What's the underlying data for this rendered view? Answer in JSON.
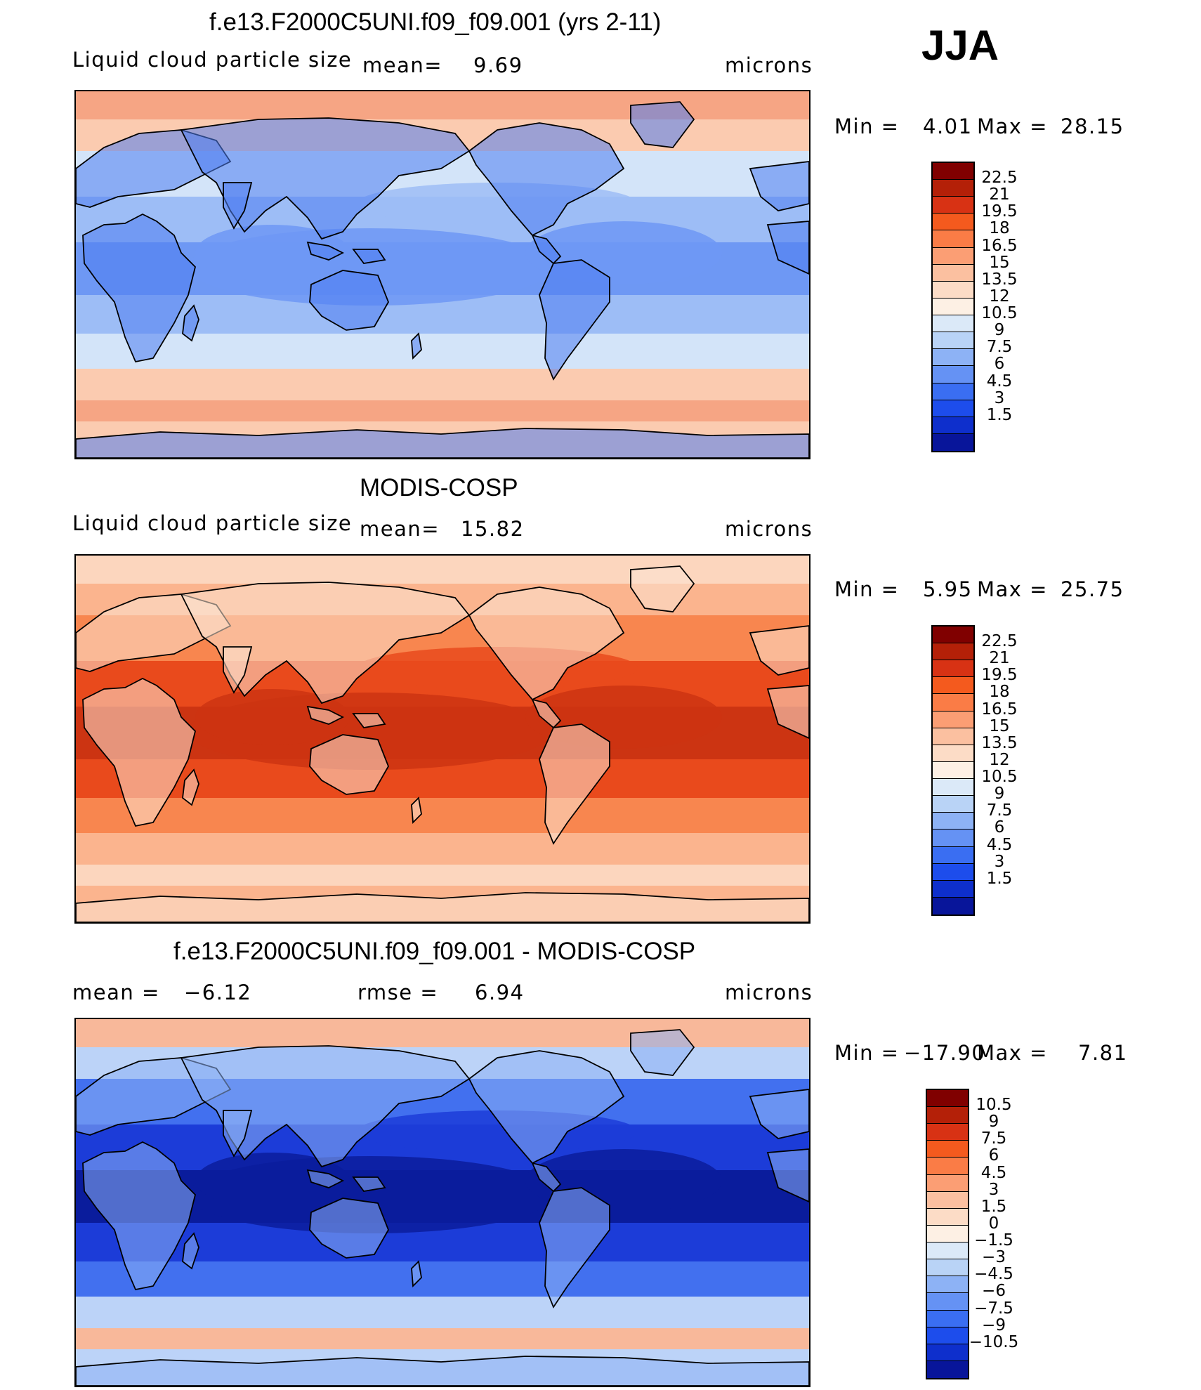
{
  "season": "JJA",
  "units": "microns",
  "panels": [
    {
      "title": "f.e13.F2000C5UNI.f09_f09.001 (yrs 2-11)",
      "label_left": "Liquid cloud particle size",
      "stat1_label": "mean=",
      "stat1_value": "9.69",
      "stat2_label": "",
      "stat2_value": "",
      "units": "microns",
      "min_label": "Min  =",
      "min_value": "4.01",
      "max_label": "Max  =",
      "max_value": "28.15",
      "colorbar_levels": [
        "22.5",
        "21",
        "19.5",
        "18",
        "16.5",
        "15",
        "13.5",
        "12",
        "10.5",
        "9",
        "7.5",
        "6",
        "4.5",
        "3",
        "1.5"
      ],
      "colorbar_colors": [
        "#800000",
        "#B42008",
        "#D83214",
        "#F45A1E",
        "#FA7C46",
        "#FB9E74",
        "#FBC0A0",
        "#FCDCC6",
        "#FDF0E4",
        "#DBE9F8",
        "#B9D3F6",
        "#8DB2F5",
        "#6592F4",
        "#3A6EF2",
        "#1D4DEC",
        "#0E2FCC",
        "#08159A"
      ],
      "field_colors": {
        "polar": "#F6A584",
        "subpolar": "#FBCBB0",
        "midlat": "#D3E4F9",
        "tropics": "#9DBDF6",
        "deep": "#6E98F4",
        "land": "#4E7DF0"
      }
    },
    {
      "title": "MODIS-COSP",
      "label_left": "Liquid cloud particle size",
      "stat1_label": "mean=",
      "stat1_value": "15.82",
      "stat2_label": "",
      "stat2_value": "",
      "units": "microns",
      "min_label": "Min  =",
      "min_value": "5.95",
      "max_label": "Max  =",
      "max_value": "25.75",
      "colorbar_levels": [
        "22.5",
        "21",
        "19.5",
        "18",
        "16.5",
        "15",
        "13.5",
        "12",
        "10.5",
        "9",
        "7.5",
        "6",
        "4.5",
        "3",
        "1.5"
      ],
      "colorbar_colors": [
        "#800000",
        "#B42008",
        "#D83214",
        "#F45A1E",
        "#FA7C46",
        "#FB9E74",
        "#FBC0A0",
        "#FCDCC6",
        "#FDF0E4",
        "#DBE9F8",
        "#B9D3F6",
        "#8DB2F5",
        "#6592F4",
        "#3A6EF2",
        "#1D4DEC",
        "#0E2FCC",
        "#08159A"
      ],
      "field_colors": {
        "polar": "#FCD6BE",
        "subpolar": "#FBB48E",
        "midlat": "#F8864F",
        "tropics": "#E94A1C",
        "deep": "#CC3412",
        "land": "#FCE4D2"
      }
    },
    {
      "title": "f.e13.F2000C5UNI.f09_f09.001 - MODIS-COSP",
      "label_left": "",
      "stat1_label": "mean =",
      "stat1_value": "−6.12",
      "stat2_label": "rmse =",
      "stat2_value": "6.94",
      "units": "microns",
      "min_label": "Min  =",
      "min_value": "−17.90",
      "max_label": "Max  =",
      "max_value": "7.81",
      "colorbar_levels": [
        "10.5",
        "9",
        "7.5",
        "6",
        "4.5",
        "3",
        "1.5",
        "0",
        "−1.5",
        "−3",
        "−4.5",
        "−6",
        "−7.5",
        "−9",
        "−10.5"
      ],
      "colorbar_colors": [
        "#800000",
        "#B42008",
        "#D83214",
        "#F45A1E",
        "#FA7C46",
        "#FB9E74",
        "#FBC0A0",
        "#FCDCC6",
        "#FDF0E4",
        "#DBE9F8",
        "#B9D3F6",
        "#8DB2F5",
        "#6592F4",
        "#3A6EF2",
        "#1D4DEC",
        "#0E2FCC",
        "#08159A"
      ],
      "field_colors": {
        "polar": "#F8B89A",
        "subpolar": "#BCD3F8",
        "midlat": "#4270EF",
        "tropics": "#1C3CD8",
        "deep": "#0A1C9C",
        "land": "#8DB0F4"
      }
    }
  ]
}
